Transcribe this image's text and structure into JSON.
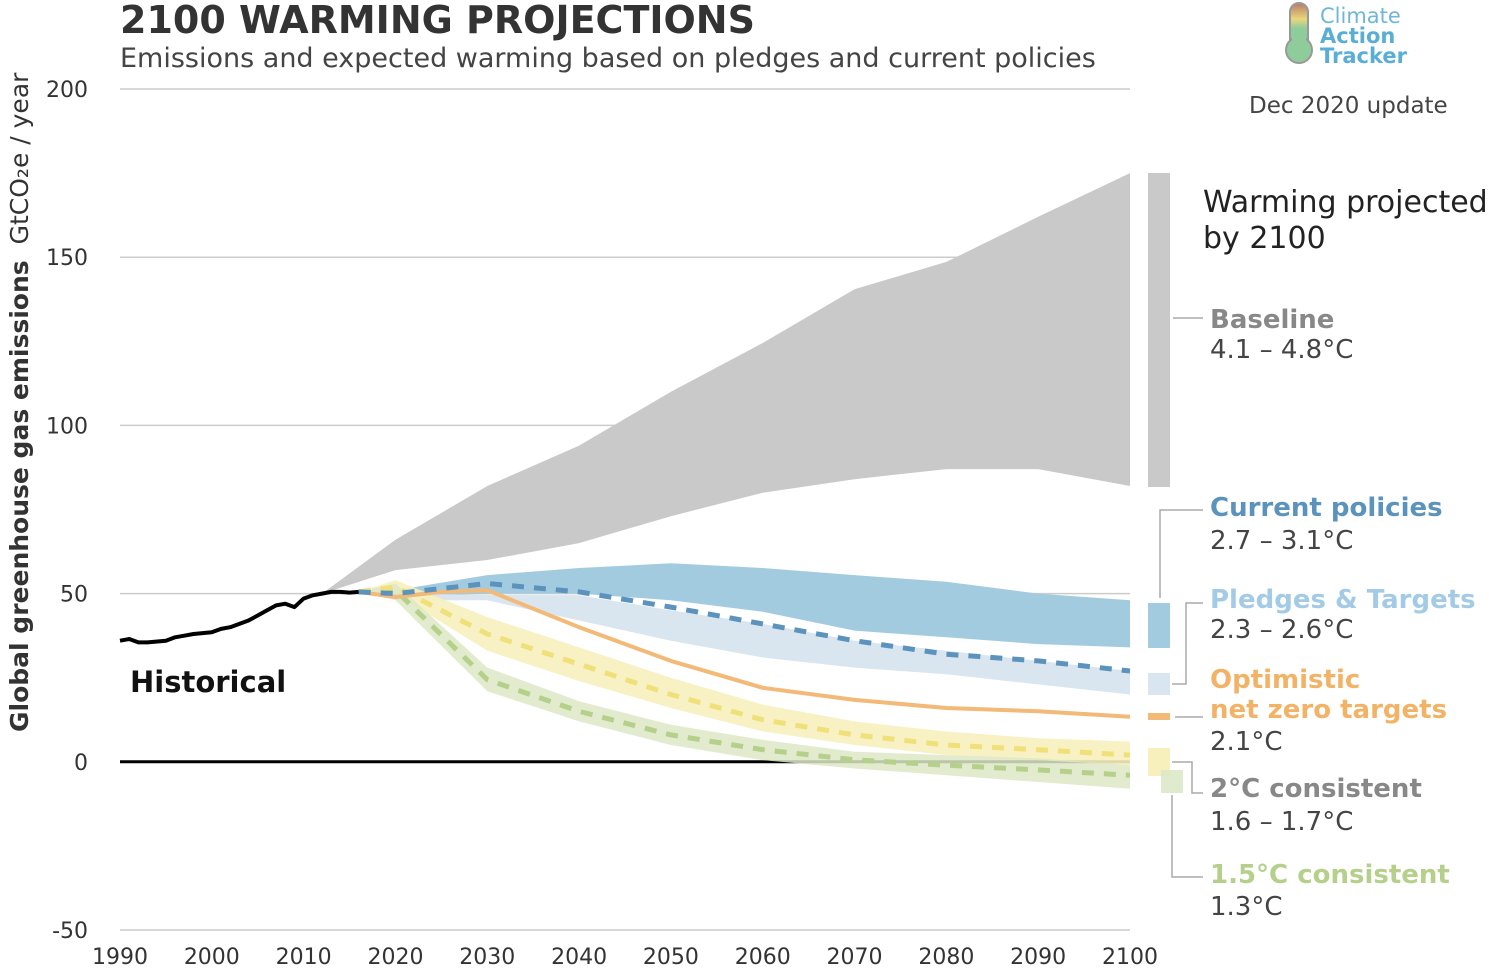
{
  "logo": {
    "line1": "Climate",
    "line2": "Action",
    "line3": "Tracker"
  },
  "update_label": "Dec 2020 update",
  "colors": {
    "baseline": "#c9c9c9",
    "current_policies_band": "#a3cbe0",
    "current_policies_line": "#5b93bd",
    "pledges_band": "#d9e5ef",
    "optimistic": "#f2b977",
    "two_c_band": "#f7f0bc",
    "two_c_line": "#efe07a",
    "one_five_band": "#dde8c6",
    "one_five_line": "#b4d08a",
    "historical": "#000000"
  },
  "chart_data": {
    "type": "area",
    "title": "2100 WARMING PROJECTIONS",
    "subtitle": "Emissions and expected warming based on pledges and current policies",
    "ylabel_bold": "Global greenhouse gas emissions",
    "ylabel_unit": "GtCO₂e / year",
    "xlim": [
      1990,
      2100
    ],
    "ylim": [
      -50,
      200
    ],
    "xticks": [
      "1990",
      "2000",
      "2010",
      "2020",
      "2030",
      "2040",
      "2050",
      "2060",
      "2070",
      "2080",
      "2090",
      "2100"
    ],
    "yticks": [
      "200",
      "150",
      "100",
      "50",
      "0",
      "-50"
    ],
    "grid": true,
    "annotation_historical": "Historical",
    "legend_heading": "Warming projected by 2100",
    "historical": {
      "x": [
        1990,
        1991,
        1992,
        1993,
        1995,
        1996,
        1997,
        1998,
        2000,
        2001,
        2002,
        2004,
        2005,
        2006,
        2007,
        2008,
        2009,
        2010,
        2011,
        2012,
        2013,
        2014,
        2015,
        2016
      ],
      "y": [
        36,
        36.5,
        35.5,
        35.5,
        36,
        37,
        37.5,
        38,
        38.5,
        39.5,
        40,
        42,
        43.5,
        45,
        46.5,
        47,
        46,
        48.5,
        49.5,
        50,
        50.5,
        50.5,
        50.3,
        50.5
      ]
    },
    "series": [
      {
        "name": "Baseline",
        "warming": "4.1 – 4.8°C",
        "x": [
          2012,
          2020,
          2030,
          2040,
          2050,
          2060,
          2070,
          2080,
          2090,
          2100
        ],
        "upper": [
          50,
          66,
          82,
          94,
          110,
          124.5,
          140.5,
          148.6,
          162,
          175
        ],
        "lower": [
          50,
          57,
          60,
          65,
          73,
          80,
          84,
          87,
          87,
          82
        ]
      },
      {
        "name": "Current policies",
        "warming": "2.7 – 3.1°C",
        "x": [
          2016,
          2020,
          2030,
          2040,
          2050,
          2060,
          2070,
          2080,
          2090,
          2100
        ],
        "upper": [
          50.5,
          51,
          55.5,
          57.6,
          59,
          57.6,
          55.5,
          53.5,
          50,
          48
        ],
        "lower": [
          50.5,
          49,
          50,
          50,
          48,
          44.6,
          39,
          37,
          35,
          34
        ],
        "median": [
          50.5,
          50,
          53,
          50.5,
          46,
          41,
          36,
          32,
          30,
          27
        ]
      },
      {
        "name": "Pledges & Targets",
        "warming": "2.3 – 2.6°C",
        "x": [
          2020,
          2030,
          2040,
          2050,
          2060,
          2070,
          2080,
          2090,
          2100
        ],
        "upper": [
          50,
          49.6,
          49.5,
          45,
          41,
          36,
          33,
          30,
          27
        ],
        "lower": [
          48,
          48,
          42,
          36,
          31,
          28,
          26,
          23,
          20
        ]
      },
      {
        "name": "Optimistic net zero targets",
        "warming": "2.1°C",
        "x": [
          2016,
          2020,
          2025,
          2030,
          2040,
          2050,
          2060,
          2070,
          2080,
          2090,
          2100
        ],
        "y": [
          50.5,
          49,
          50.5,
          51,
          40,
          30,
          22,
          18.4,
          16,
          15,
          13.4
        ]
      },
      {
        "name": "2°C consistent",
        "warming": "1.6 – 1.7°C",
        "x": [
          2016,
          2020,
          2030,
          2040,
          2050,
          2060,
          2070,
          2080,
          2090,
          2100
        ],
        "upper": [
          50.5,
          54,
          43,
          34,
          25,
          17,
          12,
          9,
          7,
          6
        ],
        "lower": [
          50.5,
          50,
          33,
          24,
          16,
          9,
          5,
          2,
          0.5,
          -1
        ],
        "median": [
          50.5,
          52,
          38,
          29,
          20,
          12.5,
          8,
          5,
          3.6,
          2
        ]
      },
      {
        "name": "1.5°C consistent",
        "warming": "1.3°C",
        "x": [
          2016,
          2020,
          2030,
          2040,
          2050,
          2060,
          2070,
          2080,
          2090,
          2100
        ],
        "upper": [
          50.5,
          53,
          28,
          18,
          11,
          6.5,
          3,
          2,
          1,
          -1
        ],
        "lower": [
          50.5,
          48,
          21,
          12,
          5,
          0.5,
          -2,
          -4,
          -6,
          -8
        ],
        "median": [
          50.5,
          51,
          24.4,
          15,
          8,
          3.6,
          0.6,
          -1,
          -2.4,
          -4
        ]
      }
    ]
  }
}
